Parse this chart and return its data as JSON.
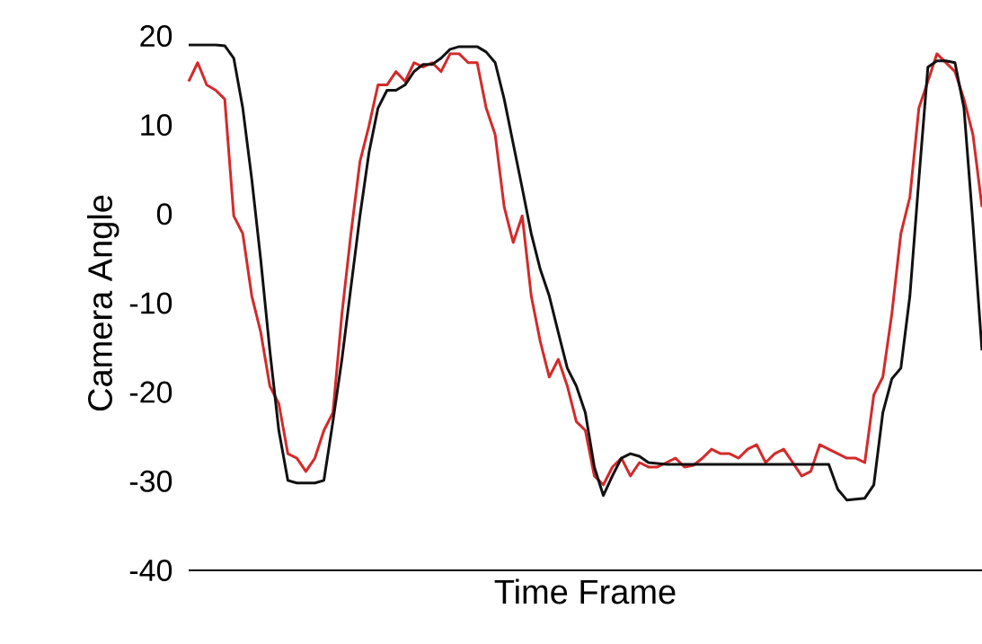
{
  "chart_data": {
    "type": "line",
    "xlabel": "Time Frame",
    "ylabel": "Camera Angle",
    "categories": [
      null,
      null,
      null,
      null,
      null,
      null,
      null,
      null,
      null,
      null,
      null,
      null,
      null,
      null,
      null,
      null,
      null,
      null,
      null,
      null,
      null,
      null,
      null,
      null,
      null,
      null,
      null,
      null,
      null,
      null,
      null,
      null,
      null,
      null,
      null,
      null,
      null,
      null,
      null,
      null,
      null,
      null,
      null,
      null,
      null,
      null,
      null,
      null,
      null,
      null,
      null,
      null,
      null,
      null,
      null,
      null,
      null,
      null,
      null,
      null,
      null,
      null,
      null,
      null,
      null,
      null,
      null,
      null,
      null,
      null,
      null,
      null,
      null,
      null,
      null,
      null,
      null,
      null,
      null,
      null,
      null,
      null,
      null,
      null,
      null,
      null,
      null,
      null,
      null
    ],
    "ylim": [
      -40,
      20
    ],
    "yticks": [
      20,
      10,
      0,
      -10,
      -20,
      -30,
      -40
    ],
    "grid": false,
    "marker": "none",
    "line_style": "solid",
    "series": [
      {
        "color": "#d42a2a",
        "values": [
          14.9,
          17.0,
          14.5,
          13.9,
          12.9,
          -0.2,
          -2.2,
          -9.2,
          -13.3,
          -19.3,
          -21.3,
          -26.9,
          -27.4,
          -28.9,
          -27.4,
          -24.3,
          -22.3,
          -11.2,
          -2.2,
          5.9,
          9.9,
          14.5,
          14.5,
          16.0,
          14.9,
          17.0,
          16.5,
          17.0,
          16.0,
          18.0,
          18.0,
          17.0,
          17.0,
          11.9,
          8.9,
          0.8,
          -3.2,
          -0.2,
          -9.2,
          -14.3,
          -18.3,
          -16.3,
          -19.3,
          -23.3,
          -24.3,
          -29.4,
          -30.4,
          -28.4,
          -27.4,
          -29.4,
          -27.9,
          -28.4,
          -28.4,
          -27.9,
          -27.4,
          -28.4,
          -28.2,
          -27.4,
          -26.4,
          -26.9,
          -26.9,
          -27.4,
          -26.4,
          -25.9,
          -27.9,
          -26.9,
          -26.4,
          -27.9,
          -29.4,
          -28.9,
          -25.9,
          -26.4,
          -26.9,
          -27.4,
          -27.4,
          -27.9,
          -20.3,
          -18.3,
          -11.2,
          -2.2,
          1.9,
          11.9,
          14.9,
          18.0,
          17.0,
          16.0,
          12.9,
          8.9,
          0.8
        ]
      },
      {
        "color": "#111111",
        "values": [
          19.0,
          19.0,
          19.0,
          19.0,
          18.9,
          17.5,
          11.9,
          3.9,
          -5.2,
          -15.3,
          -24.3,
          -29.9,
          -30.2,
          -30.2,
          -30.2,
          -29.9,
          -23.3,
          -16.3,
          -8.2,
          -0.2,
          6.9,
          11.9,
          13.9,
          13.9,
          14.5,
          16.0,
          16.8,
          16.8,
          17.5,
          18.5,
          18.8,
          18.8,
          18.8,
          18.2,
          17.0,
          12.9,
          7.9,
          2.9,
          -2.2,
          -6.2,
          -9.2,
          -13.3,
          -17.3,
          -19.3,
          -22.3,
          -28.4,
          -31.6,
          -29.4,
          -27.4,
          -26.9,
          -27.2,
          -27.9,
          -28.0,
          -28.1,
          -28.1,
          -28.1,
          -28.1,
          -28.1,
          -28.1,
          -28.1,
          -28.1,
          -28.1,
          -28.1,
          -28.1,
          -28.1,
          -28.1,
          -28.1,
          -28.1,
          -28.1,
          -28.1,
          -28.1,
          -28.1,
          -30.9,
          -32.1,
          -32.0,
          -31.9,
          -30.4,
          -22.3,
          -18.5,
          -17.3,
          -9.2,
          3.9,
          16.5,
          17.2,
          17.2,
          17.0,
          11.9,
          -1.2,
          -15.3
        ]
      }
    ]
  }
}
